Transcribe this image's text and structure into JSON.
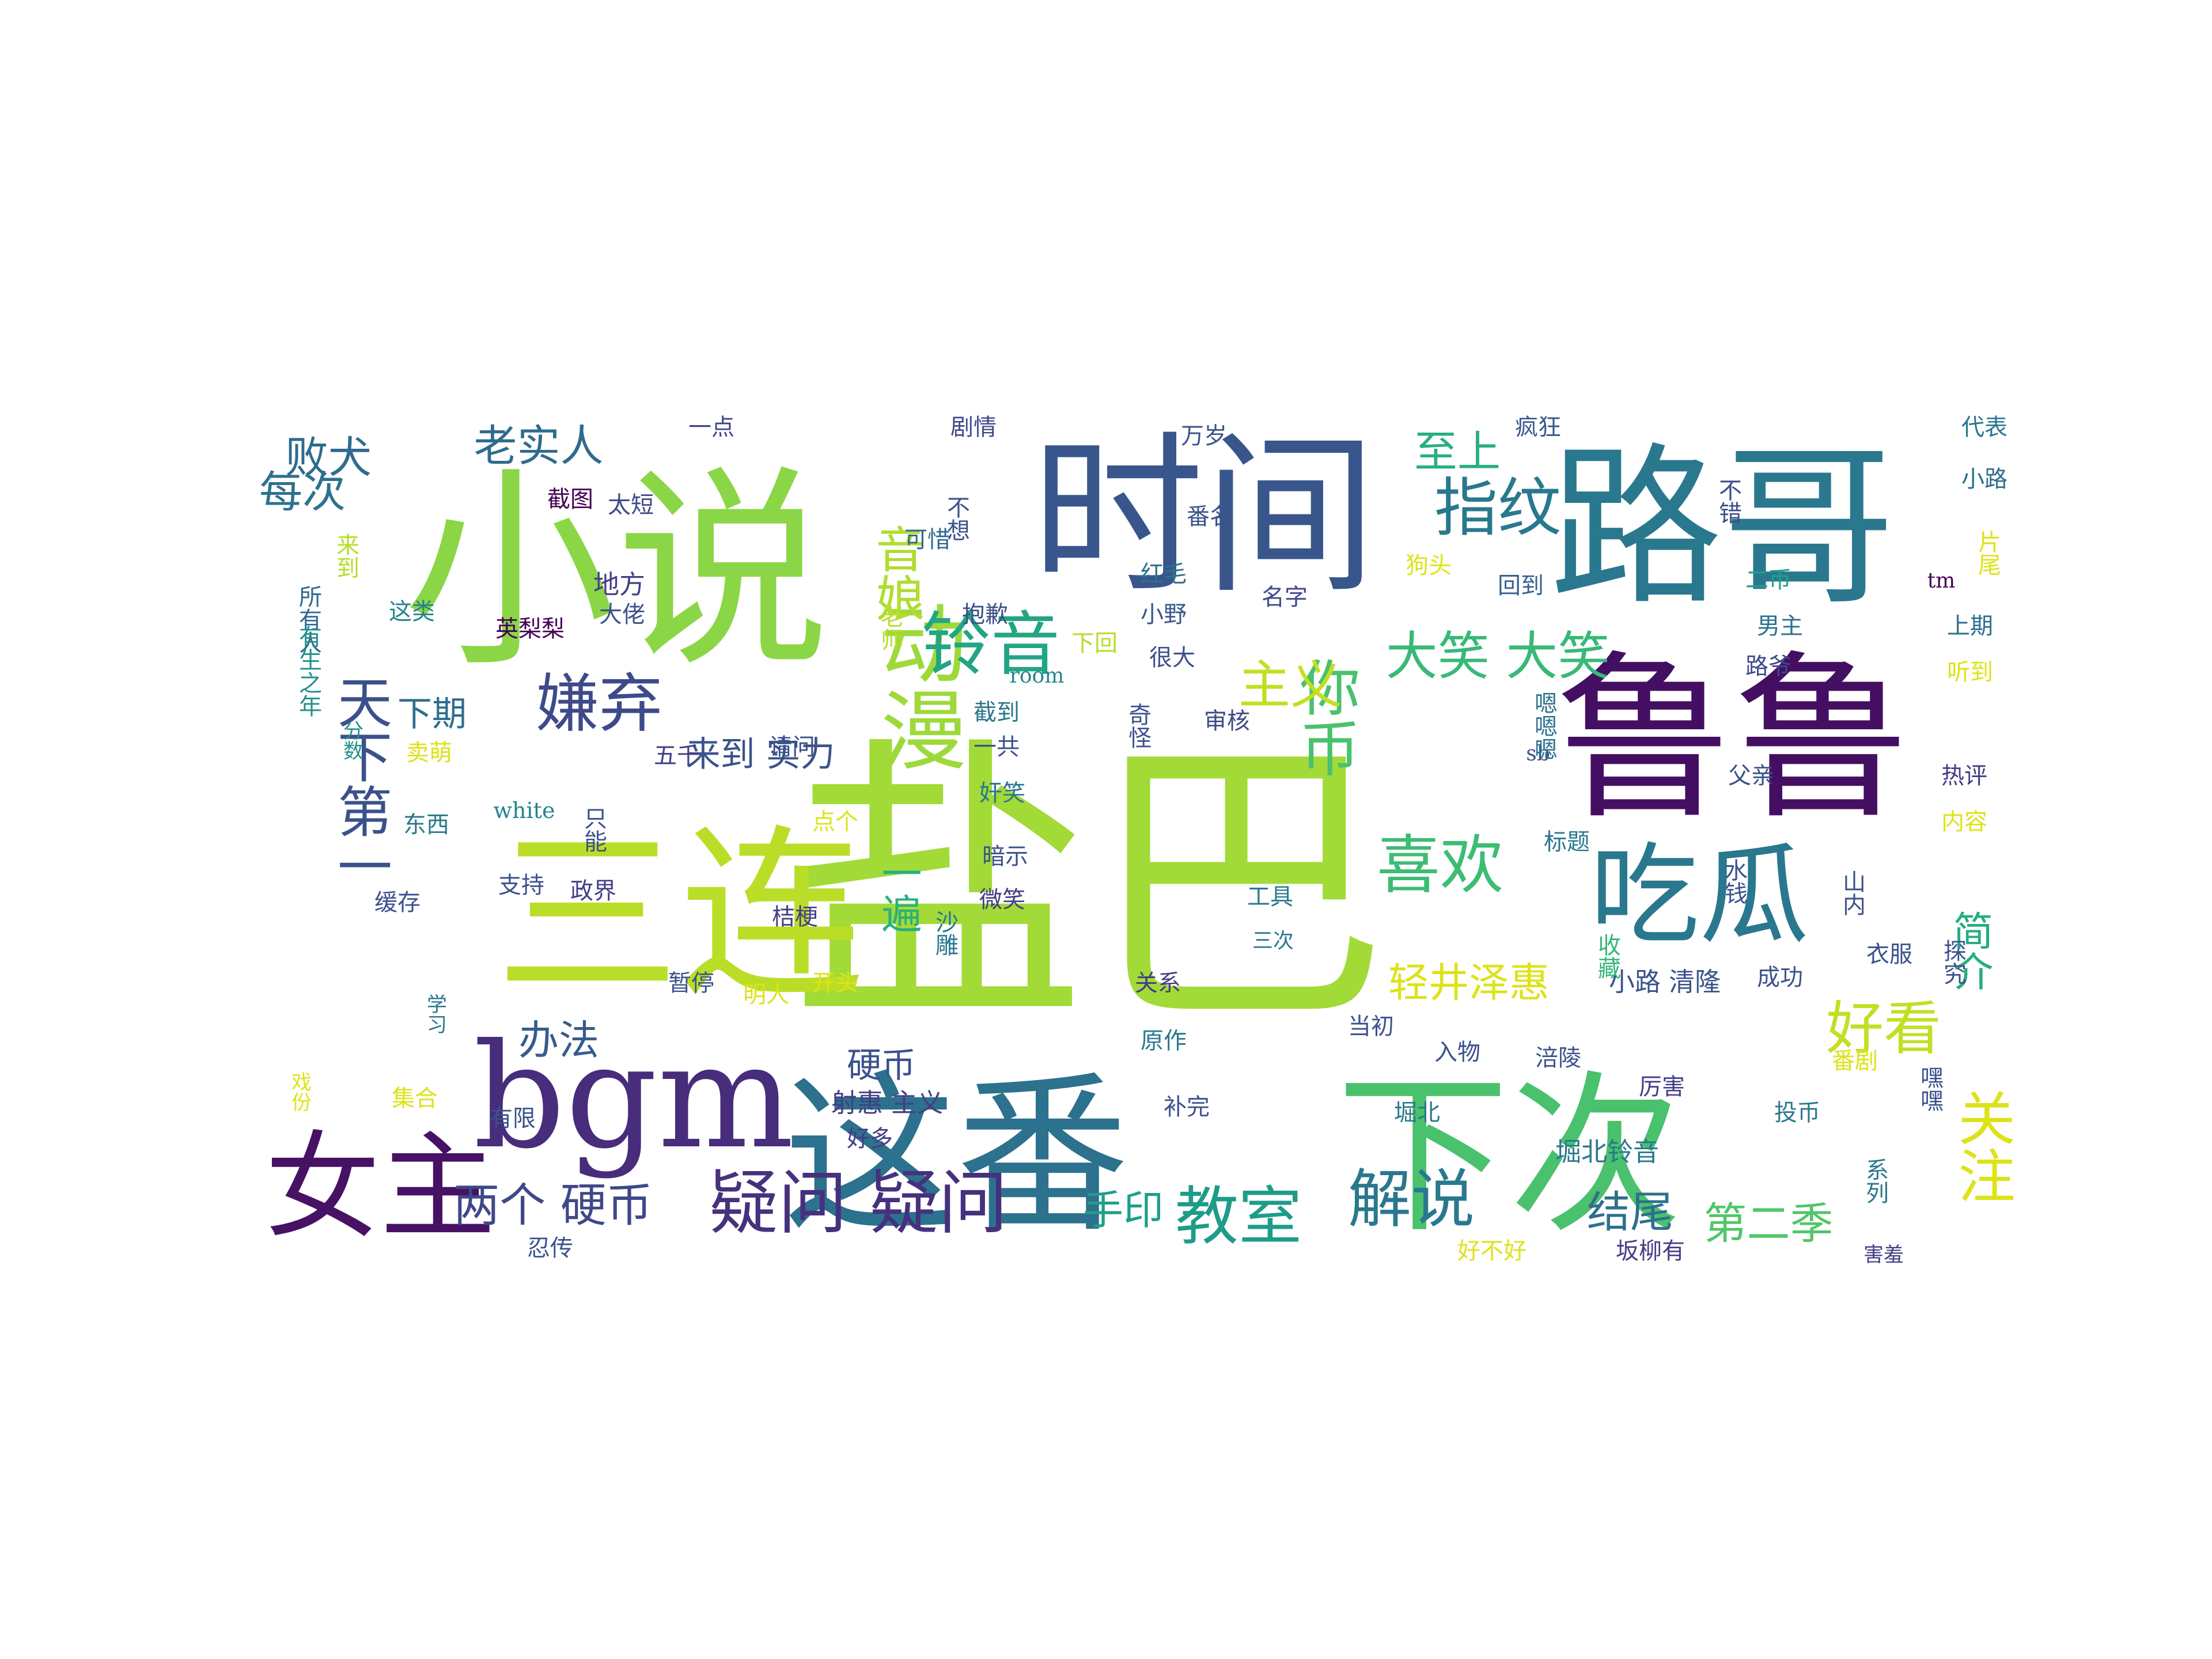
{
  "words": [
    {
      "text": "盐巴",
      "color": "#a2da37"
    },
    {
      "text": "小说",
      "color": "#8bd646"
    },
    {
      "text": "鲁鲁",
      "color": "#440f62"
    },
    {
      "text": "时间",
      "color": "#39568c"
    },
    {
      "text": "路哥",
      "color": "#2a788e"
    },
    {
      "text": "三连",
      "color": "#bade28"
    },
    {
      "text": "这番",
      "color": "#2c718e"
    },
    {
      "text": "下次",
      "color": "#4ac16d"
    },
    {
      "text": "bgm",
      "color": "#472d7b"
    },
    {
      "text": "女主",
      "color": "#471164"
    },
    {
      "text": "动漫",
      "color": "#9dd93b"
    },
    {
      "text": "吃瓜",
      "color": "#2a788e"
    },
    {
      "text": "你币",
      "color": "#4ac16d"
    },
    {
      "text": "天下第一",
      "color": "#3b518b"
    },
    {
      "text": "铃音",
      "color": "#21a585"
    },
    {
      "text": "指纹",
      "color": "#2a788e"
    },
    {
      "text": "嫌弃",
      "color": "#3e4a89"
    },
    {
      "text": "喜欢",
      "color": "#3dbc74"
    },
    {
      "text": "好看",
      "color": "#c2df23"
    },
    {
      "text": "关注",
      "color": "#dde318"
    },
    {
      "text": "疑问 疑问",
      "color": "#46317e"
    },
    {
      "text": "解说",
      "color": "#2a788e"
    },
    {
      "text": "教室",
      "color": "#1e9c89"
    },
    {
      "text": "主义",
      "color": "#c2df23"
    },
    {
      "text": "大笑 大笑",
      "color": "#38b977"
    },
    {
      "text": "音娘",
      "color": "#b0dd2f"
    },
    {
      "text": "老实人",
      "color": "#2f6b8e"
    },
    {
      "text": "败犬",
      "color": "#306a8e"
    },
    {
      "text": "每次",
      "color": "#2d718e"
    },
    {
      "text": "至上",
      "color": "#29af7f"
    },
    {
      "text": "两个 硬币",
      "color": "#3f4889"
    },
    {
      "text": "手印",
      "color": "#1f9e89"
    },
    {
      "text": "第二季",
      "color": "#52c569"
    },
    {
      "text": "结尾",
      "color": "#2e6f8e"
    },
    {
      "text": "轻井泽惠",
      "color": "#dde318"
    },
    {
      "text": "简介",
      "color": "#26ad81"
    },
    {
      "text": "一遍",
      "color": "#2ab07f"
    },
    {
      "text": "办法",
      "color": "#365c8d"
    },
    {
      "text": "下期",
      "color": "#2e6e8e"
    },
    {
      "text": "硬币",
      "color": "#3b528b"
    },
    {
      "text": "来到 实力",
      "color": "#3b528b"
    },
    {
      "text": "地方",
      "color": "#433e85"
    },
    {
      "text": "一点",
      "color": "#3f4788"
    },
    {
      "text": "剧情",
      "color": "#3e4989"
    },
    {
      "text": "万岁",
      "color": "#3b528b"
    },
    {
      "text": "疯狂",
      "color": "#38588c"
    },
    {
      "text": "代表",
      "color": "#2a768e"
    },
    {
      "text": "小路",
      "color": "#2e6d8e"
    },
    {
      "text": "不错",
      "color": "#3d4d8a"
    },
    {
      "text": "片尾",
      "color": "#dde318"
    },
    {
      "text": "tm",
      "color": "#440154"
    },
    {
      "text": "截图",
      "color": "#440154"
    },
    {
      "text": "太短",
      "color": "#3e4a89"
    },
    {
      "text": "不想",
      "color": "#3b528b"
    },
    {
      "text": "可惜",
      "color": "#31688e"
    },
    {
      "text": "抱歉",
      "color": "#3c4f8a"
    },
    {
      "text": "番名",
      "color": "#3b528b"
    },
    {
      "text": "红毛",
      "color": "#2c728e"
    },
    {
      "text": "名字",
      "color": "#3f4889"
    },
    {
      "text": "狗头",
      "color": "#dde318"
    },
    {
      "text": "回到",
      "color": "#34618d"
    },
    {
      "text": "二币",
      "color": "#1fa088"
    },
    {
      "text": "上期",
      "color": "#2e6e8e"
    },
    {
      "text": "来到",
      "color": "#b5de2b"
    },
    {
      "text": "所有人",
      "color": "#31688e"
    },
    {
      "text": "老师",
      "color": "#b5de2b"
    },
    {
      "text": "这类",
      "color": "#25838e"
    },
    {
      "text": "英梨梨",
      "color": "#440154"
    },
    {
      "text": "大佬",
      "color": "#3b528b"
    },
    {
      "text": "下回",
      "color": "#b5de2b"
    },
    {
      "text": "小野",
      "color": "#38588c"
    },
    {
      "text": "很大",
      "color": "#3b528b"
    },
    {
      "text": "男主",
      "color": "#2c718e"
    },
    {
      "text": "听到",
      "color": "#dde318"
    },
    {
      "text": "有生之年",
      "color": "#21918c"
    },
    {
      "text": "路爷",
      "color": "#3e4989"
    },
    {
      "text": "room",
      "color": "#25858e"
    },
    {
      "text": "奇怪",
      "color": "#3b528b"
    },
    {
      "text": "审核",
      "color": "#3e4989"
    },
    {
      "text": "截到",
      "color": "#2a768e"
    },
    {
      "text": "分数",
      "color": "#21918c"
    },
    {
      "text": "卖萌",
      "color": "#dde318"
    },
    {
      "text": "请问",
      "color": "#3b528b"
    },
    {
      "text": "五千",
      "color": "#433e85"
    },
    {
      "text": "一共",
      "color": "#3b528b"
    },
    {
      "text": "sb",
      "color": "#3b528b"
    },
    {
      "text": "嗯嗯嗯",
      "color": "#2c728e"
    },
    {
      "text": "热评",
      "color": "#433e85"
    },
    {
      "text": "父亲",
      "color": "#3b528b"
    },
    {
      "text": "奸笑",
      "color": "#2a788e"
    },
    {
      "text": "white",
      "color": "#25838e"
    },
    {
      "text": "点个",
      "color": "#dde318"
    },
    {
      "text": "东西",
      "color": "#2a788e"
    },
    {
      "text": "只能",
      "color": "#3b528b"
    },
    {
      "text": "标题",
      "color": "#2a788e"
    },
    {
      "text": "内容",
      "color": "#dde318"
    },
    {
      "text": "暗示",
      "color": "#3b528b"
    },
    {
      "text": "水钱",
      "color": "#3b528b"
    },
    {
      "text": "山内",
      "color": "#3b528b"
    },
    {
      "text": "微笑",
      "color": "#433e85"
    },
    {
      "text": "缓存",
      "color": "#3b528b"
    },
    {
      "text": "支持",
      "color": "#3b528b"
    },
    {
      "text": "政界",
      "color": "#433e85"
    },
    {
      "text": "工具",
      "color": "#2a788e"
    },
    {
      "text": "衣服",
      "color": "#3b528b"
    },
    {
      "text": "探究",
      "color": "#3b528b"
    },
    {
      "text": "桔梗",
      "color": "#433e85"
    },
    {
      "text": "沙雕",
      "color": "#2a788e"
    },
    {
      "text": "三次",
      "color": "#2a788e"
    },
    {
      "text": "收藏",
      "color": "#35b779"
    },
    {
      "text": "成功",
      "color": "#3b528b"
    },
    {
      "text": "暂停",
      "color": "#3b528b"
    },
    {
      "text": "明人",
      "color": "#dde318"
    },
    {
      "text": "开头",
      "color": "#dde318"
    },
    {
      "text": "关系",
      "color": "#433e85"
    },
    {
      "text": "小路 清隆",
      "color": "#3b528b"
    },
    {
      "text": "学习",
      "color": "#2a788e"
    },
    {
      "text": "原作",
      "color": "#2a788e"
    },
    {
      "text": "当初",
      "color": "#3b528b"
    },
    {
      "text": "入物",
      "color": "#3b528b"
    },
    {
      "text": "涪陵",
      "color": "#3b528b"
    },
    {
      "text": "番剧",
      "color": "#dde318"
    },
    {
      "text": "嘿嘿",
      "color": "#3b528b"
    },
    {
      "text": "戏份",
      "color": "#dde318"
    },
    {
      "text": "集合",
      "color": "#dde318"
    },
    {
      "text": "射惠 主义",
      "color": "#433e85"
    },
    {
      "text": "补完",
      "color": "#3b528b"
    },
    {
      "text": "堀北",
      "color": "#2a788e"
    },
    {
      "text": "厉害",
      "color": "#433e85"
    },
    {
      "text": "投币",
      "color": "#2a788e"
    },
    {
      "text": "有限",
      "color": "#3b528b"
    },
    {
      "text": "好多",
      "color": "#433e85"
    },
    {
      "text": "堀北铃音",
      "color": "#2a788e"
    },
    {
      "text": "系列",
      "color": "#2a788e"
    },
    {
      "text": "忍传",
      "color": "#3b528b"
    },
    {
      "text": "好不好",
      "color": "#dde318"
    },
    {
      "text": "坂柳有",
      "color": "#433e85"
    },
    {
      "text": "害羞",
      "color": "#433e85"
    }
  ]
}
